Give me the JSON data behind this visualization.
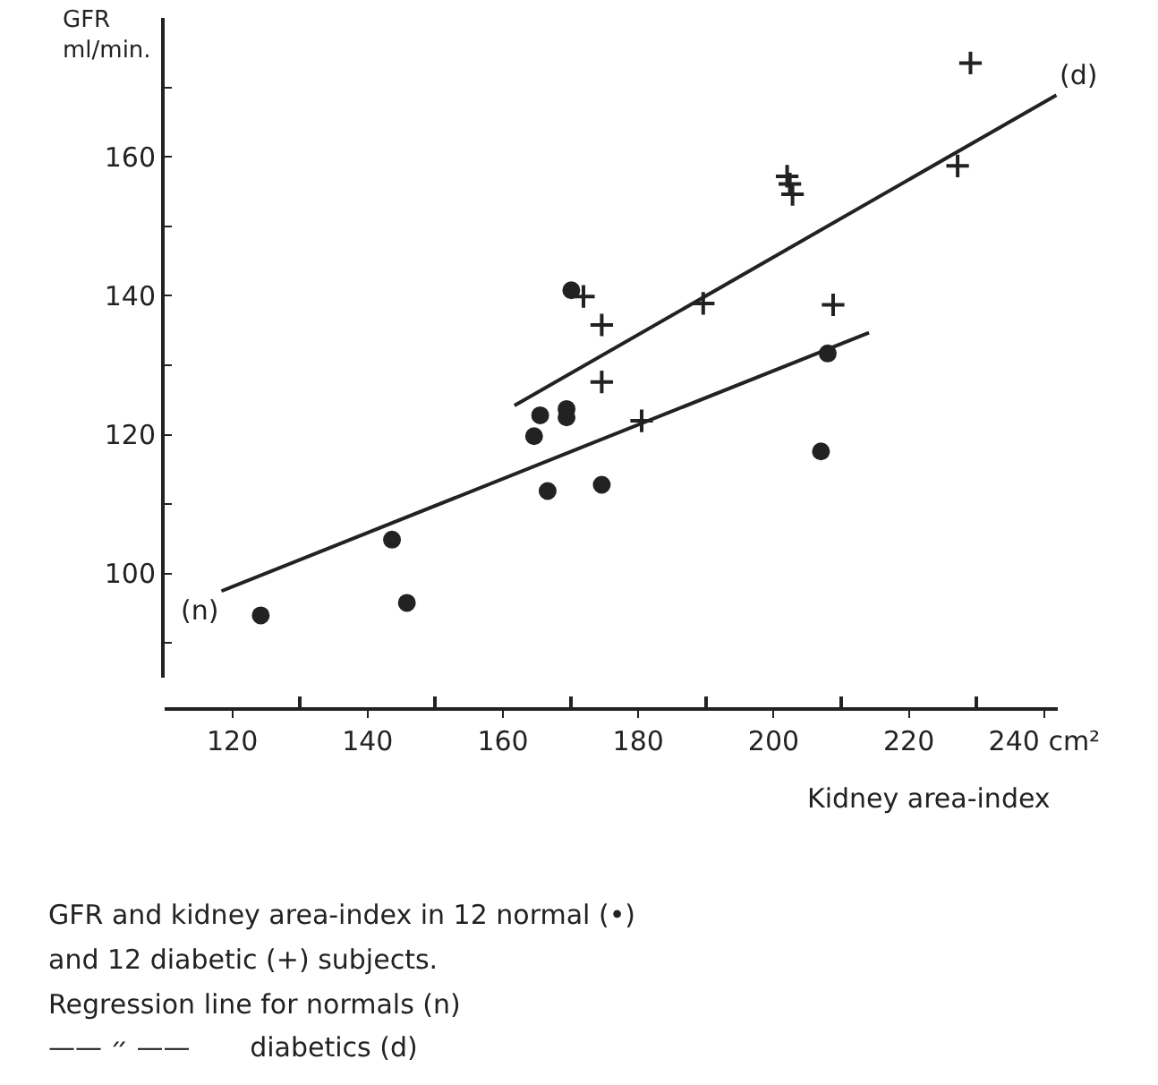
{
  "chart_data": {
    "type": "scatter",
    "xlabel": "Kidney area-index",
    "ylabel": "GFR\nml/min.",
    "xlim": [
      110,
      242
    ],
    "ylim": [
      85,
      180
    ],
    "xticks": [
      120,
      {
        "value": 130,
        "label": null
      },
      140,
      {
        "value": 150,
        "label": null
      },
      160,
      {
        "value": 170,
        "label": null
      },
      180,
      {
        "value": 190,
        "label": null
      },
      200,
      {
        "value": 210,
        "label": null
      },
      220,
      {
        "value": 230,
        "label": null
      },
      {
        "value": 240,
        "label": "240 cm²"
      }
    ],
    "yticks": [
      {
        "value": 90,
        "label": null
      },
      100,
      {
        "value": 110,
        "label": null
      },
      120,
      {
        "value": 130,
        "label": null
      },
      140,
      {
        "value": 150,
        "label": null
      },
      160,
      {
        "value": 170,
        "label": null
      }
    ],
    "grid": false,
    "series": [
      {
        "type": "scatter",
        "marker": "circle",
        "color": "#222222",
        "x": [
          124.2,
          143.6,
          145.8,
          164.6,
          165.5,
          166.6,
          169.4,
          169.4,
          170.1,
          174.6,
          208,
          207
        ],
        "values": [
          94.0,
          104.9,
          95.8,
          119.8,
          122.8,
          111.9,
          123.7,
          122.5,
          140.8,
          112.8,
          131.7,
          117.6
        ]
      },
      {
        "type": "scatter",
        "marker": "cross",
        "color": "#222222",
        "x": [
          171.9,
          174.6,
          174.6,
          180.5,
          189.6,
          202,
          202.4,
          202.8,
          208.8,
          227.2,
          229.1
        ],
        "values": [
          139.9,
          135.8,
          127.6,
          122.0,
          138.9,
          157.2,
          156.1,
          154.6,
          138.7,
          158.7,
          173.5
        ]
      },
      {
        "type": "line",
        "marker": "none",
        "color": "#222222",
        "x": [
          118.4,
          214.1
        ],
        "values": [
          97.5,
          134.7
        ]
      },
      {
        "type": "line",
        "marker": "none",
        "color": "#222222",
        "x": [
          161.7,
          241.8
        ],
        "values": [
          124.2,
          168.9
        ]
      }
    ],
    "annotations": [
      {
        "text": "(n)",
        "x": 118.4,
        "y": 97.5
      },
      {
        "text": "(d)",
        "x": 241.8,
        "y": 168.9
      },
      "GFR and kidney area-index in 12 normal (•)",
      "and 12 diabetic (+) subjects.",
      "Regression line for normals (n)",
      "—— ״ ——       diabetics (d)"
    ]
  }
}
